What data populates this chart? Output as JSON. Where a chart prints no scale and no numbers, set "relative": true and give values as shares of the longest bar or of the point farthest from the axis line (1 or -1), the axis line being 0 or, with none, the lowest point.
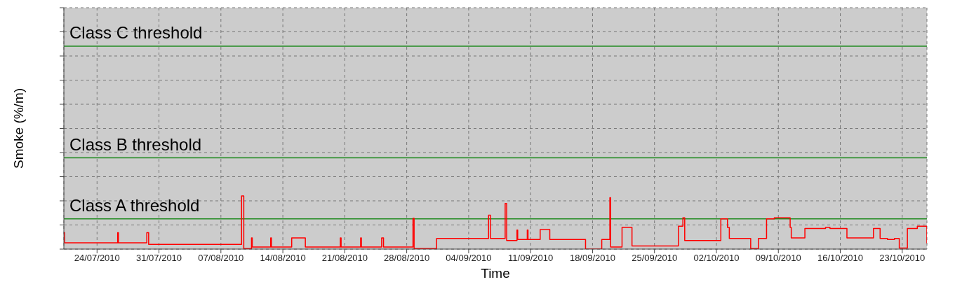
{
  "chart_data": {
    "type": "step",
    "xlabel": "Time",
    "ylabel": "Smoke (%/m)",
    "relative": true,
    "grid": true,
    "legend": false,
    "marker": "none",
    "line_style": "solid",
    "xlim": [
      "2010-07-20T06:00",
      "2010-10-25T19:00"
    ],
    "xticks": [
      {
        "value": "2010-07-24",
        "label": "24/07/2010"
      },
      {
        "value": "2010-07-31",
        "label": "31/07/2010"
      },
      {
        "value": "2010-08-07",
        "label": "07/08/2010"
      },
      {
        "value": "2010-08-14",
        "label": "14/08/2010"
      },
      {
        "value": "2010-08-21",
        "label": "21/08/2010"
      },
      {
        "value": "2010-08-28",
        "label": "28/08/2010"
      },
      {
        "value": "2010-09-04",
        "label": "04/09/2010"
      },
      {
        "value": "2010-09-11",
        "label": "11/09/2010"
      },
      {
        "value": "2010-09-18",
        "label": "18/09/2010"
      },
      {
        "value": "2010-09-25",
        "label": "25/09/2010"
      },
      {
        "value": "2010-10-02",
        "label": "02/10/2010"
      },
      {
        "value": "2010-10-09",
        "label": "09/10/2010"
      },
      {
        "value": "2010-10-16",
        "label": "16/10/2010"
      },
      {
        "value": "2010-10-23",
        "label": "23/10/2010"
      }
    ],
    "x": [
      "2010-07-20T06:00",
      "2010-07-20T08:00",
      "2010-07-26T08:00",
      "2010-07-26T10:00",
      "2010-07-29T15:00",
      "2010-07-29T20:00",
      "2010-08-09T08:00",
      "2010-08-09T14:00",
      "2010-08-10T11:00",
      "2010-08-10T13:00",
      "2010-08-12T15:00",
      "2010-08-12T17:00",
      "2010-08-15T00:00",
      "2010-08-16T13:00",
      "2010-08-20T12:00",
      "2010-08-20T14:00",
      "2010-08-22T19:00",
      "2010-08-22T21:00",
      "2010-08-25T04:00",
      "2010-08-25T09:00",
      "2010-08-28T17:00",
      "2010-08-28T20:00",
      "2010-08-31T09:00",
      "2010-09-06T06:00",
      "2010-09-06T11:00",
      "2010-09-08T03:00",
      "2010-09-08T07:00",
      "2010-09-09T11:00",
      "2010-09-09T13:00",
      "2010-09-10T15:00",
      "2010-09-10T17:00",
      "2010-09-12T02:00",
      "2010-09-13T04:00",
      "2010-09-17T05:00",
      "2010-09-19T01:00",
      "2010-09-19T23:00",
      "2010-09-20T01:00",
      "2010-09-21T08:00",
      "2010-09-22T11:00",
      "2010-09-27T17:00",
      "2010-09-28T05:00",
      "2010-09-28T10:00",
      "2010-10-02T12:00",
      "2010-10-03T06:00",
      "2010-10-03T11:00",
      "2010-10-05T21:00",
      "2010-10-06T18:00",
      "2010-10-07T16:00",
      "2010-10-08T13:00",
      "2010-10-10T08:00",
      "2010-10-10T11:00",
      "2010-10-12T00:00",
      "2010-10-14T08:00",
      "2010-10-14T20:00",
      "2010-10-16T18:00",
      "2010-10-19T18:00",
      "2010-10-20T12:00",
      "2010-10-21T08:00",
      "2010-10-22T03:00",
      "2010-10-22T16:00",
      "2010-10-23T14:00",
      "2010-10-24T17:00",
      "2010-10-25T19:00"
    ],
    "series": [
      {
        "color": "#ff0000",
        "values": [
          0.31,
          0.12,
          0.31,
          0.12,
          0.31,
          0.09,
          1,
          0.01,
          0.21,
          0.04,
          0.21,
          0.04,
          0.21,
          0.04,
          0.21,
          0.04,
          0.21,
          0.04,
          0.21,
          0.04,
          0.58,
          0.01,
          0.2,
          0.64,
          0.2,
          0.86,
          0.16,
          0.36,
          0.18,
          0.36,
          0.18,
          0.37,
          0.18,
          0,
          0.18,
          0.97,
          0.04,
          0.41,
          0.06,
          0.43,
          0.59,
          0.16,
          0.57,
          0.41,
          0.2,
          0.01,
          0.2,
          0.57,
          0.59,
          0.41,
          0.21,
          0.39,
          0.41,
          0.39,
          0.21,
          0.39,
          0.2,
          0.18,
          0.2,
          0.02,
          0.39,
          0.43,
          0.11
        ]
      }
    ],
    "ref_lines": [
      {
        "axis": "y",
        "value": 0.57,
        "label": "Class A threshold",
        "color": "#228b22"
      },
      {
        "axis": "y",
        "value": 1.72,
        "label": "Class B threshold",
        "color": "#228b22"
      },
      {
        "axis": "y",
        "value": 3.82,
        "label": "Class C threshold",
        "color": "#228b22"
      }
    ]
  }
}
